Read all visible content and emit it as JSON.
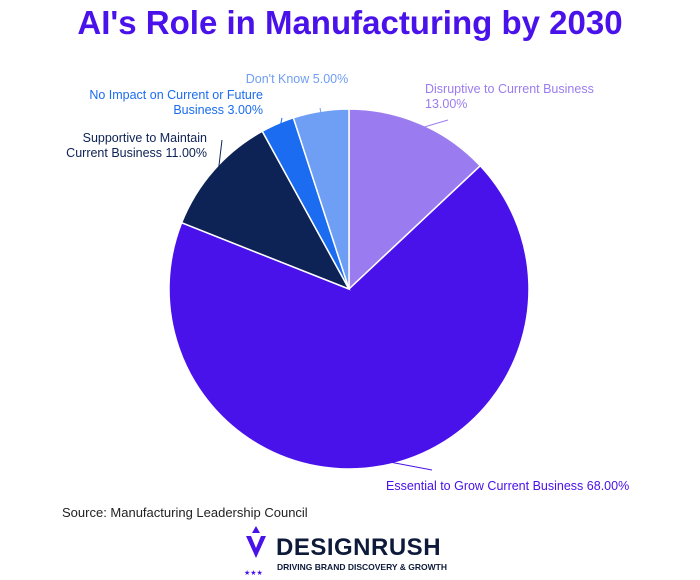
{
  "chart_data": {
    "type": "pie",
    "title": "AI's Role in Manufacturing by 2030",
    "categories": [
      "Disruptive to Current Business",
      "Essential to Grow Current Business",
      "Supportive to Maintain Current Business",
      "No Impact on Current or Future Business",
      "Don't Know"
    ],
    "values": [
      13,
      68,
      11,
      3,
      5
    ],
    "value_labels": [
      "13.00%",
      "68.00%",
      "11.00%",
      "3.00%",
      "5.00%"
    ],
    "colors": [
      "#9b7cf0",
      "#4a12ea",
      "#0d2255",
      "#1b6cf0",
      "#6f9ef5"
    ],
    "source": "Source: Manufacturing Leadership Council"
  },
  "footer": {
    "brand": "DESIGNRUSH",
    "tagline": "DRIVING BRAND DISCOVERY & GROWTH"
  }
}
